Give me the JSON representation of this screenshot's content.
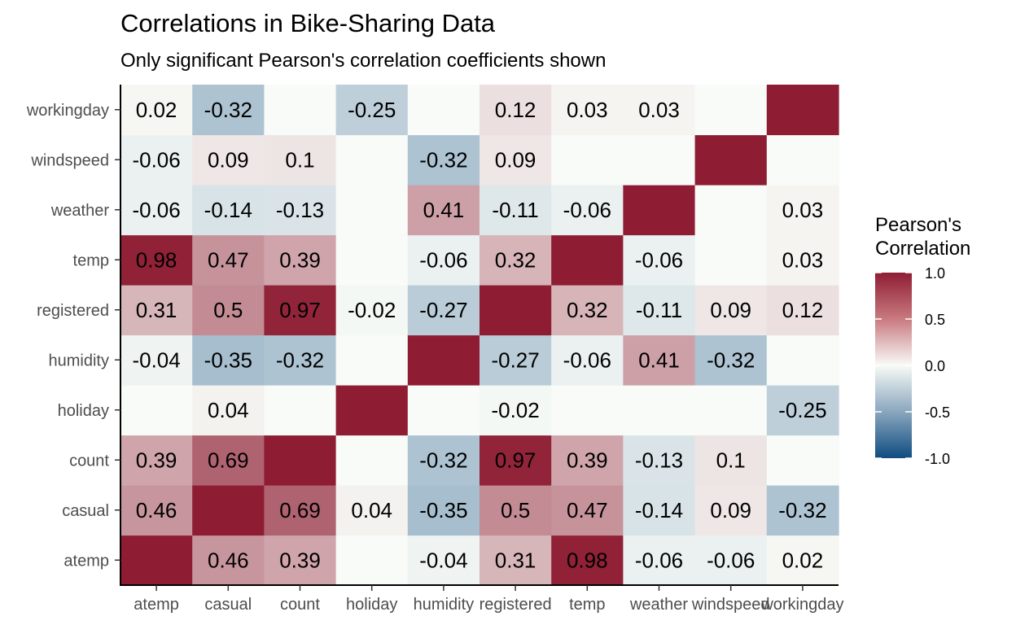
{
  "chart_data": {
    "type": "heatmap",
    "title": "Correlations in Bike-Sharing Data",
    "subtitle": "Only significant Pearson's correlation coefficients shown",
    "variables": [
      "atemp",
      "casual",
      "count",
      "holiday",
      "humidity",
      "registered",
      "temp",
      "weather",
      "windspeed",
      "workingday"
    ],
    "values": [
      [
        1.0,
        0.46,
        0.39,
        null,
        -0.04,
        0.31,
        0.98,
        -0.06,
        -0.06,
        0.02
      ],
      [
        0.46,
        1.0,
        0.69,
        0.04,
        -0.35,
        0.5,
        0.47,
        -0.14,
        0.09,
        -0.32
      ],
      [
        0.39,
        0.69,
        1.0,
        null,
        -0.32,
        0.97,
        0.39,
        -0.13,
        0.1,
        null
      ],
      [
        null,
        0.04,
        null,
        1.0,
        null,
        -0.02,
        null,
        null,
        null,
        -0.25
      ],
      [
        -0.04,
        -0.35,
        -0.32,
        null,
        1.0,
        -0.27,
        -0.06,
        0.41,
        -0.32,
        null
      ],
      [
        0.31,
        0.5,
        0.97,
        -0.02,
        -0.27,
        1.0,
        0.32,
        -0.11,
        0.09,
        0.12
      ],
      [
        0.98,
        0.47,
        0.39,
        null,
        -0.06,
        0.32,
        1.0,
        -0.06,
        null,
        0.03
      ],
      [
        -0.06,
        -0.14,
        -0.13,
        null,
        0.41,
        -0.11,
        -0.06,
        1.0,
        null,
        0.03
      ],
      [
        -0.06,
        0.09,
        0.1,
        null,
        -0.32,
        0.09,
        null,
        null,
        1.0,
        null
      ],
      [
        0.02,
        -0.32,
        null,
        -0.25,
        null,
        0.12,
        0.03,
        0.03,
        null,
        1.0
      ]
    ],
    "labels": [
      [
        "",
        "0.46",
        "0.39",
        "",
        "-0.04",
        "0.31",
        "0.98",
        "-0.06",
        "-0.06",
        "0.02"
      ],
      [
        "0.46",
        "",
        "0.69",
        "0.04",
        "-0.35",
        "0.5",
        "0.47",
        "-0.14",
        "0.09",
        "-0.32"
      ],
      [
        "0.39",
        "0.69",
        "",
        "",
        "-0.32",
        "0.97",
        "0.39",
        "-0.13",
        "0.1",
        ""
      ],
      [
        "",
        "0.04",
        "",
        "",
        "",
        "-0.02",
        "",
        "",
        "",
        "-0.25"
      ],
      [
        "-0.04",
        "-0.35",
        "-0.32",
        "",
        "",
        "-0.27",
        "-0.06",
        "0.41",
        "-0.32",
        ""
      ],
      [
        "0.31",
        "0.5",
        "0.97",
        "-0.02",
        "-0.27",
        "",
        "0.32",
        "-0.11",
        "0.09",
        "0.12"
      ],
      [
        "0.98",
        "0.47",
        "0.39",
        "",
        "-0.06",
        "0.32",
        "",
        "-0.06",
        "",
        "0.03"
      ],
      [
        "-0.06",
        "-0.14",
        "-0.13",
        "",
        "0.41",
        "-0.11",
        "-0.06",
        "",
        "",
        "0.03"
      ],
      [
        "-0.06",
        "0.09",
        "0.1",
        "",
        "-0.32",
        "0.09",
        "",
        "",
        "",
        ""
      ],
      [
        "0.02",
        "-0.32",
        "",
        "-0.25",
        "",
        "0.12",
        "0.03",
        "0.03",
        "",
        ""
      ]
    ],
    "colorscale": {
      "low": "#0f4c81",
      "mid": "#f8fbf7",
      "high": "#8e1d33",
      "range": [
        -1.0,
        1.0
      ]
    },
    "legend": {
      "title_lines": [
        "Pearson's",
        "Correlation"
      ],
      "ticks": [
        1.0,
        0.5,
        0.0,
        -0.5,
        -1.0
      ],
      "tick_labels": [
        "1.0",
        "0.5",
        "0.0",
        "-0.5",
        "-1.0"
      ],
      "placement": "right"
    }
  }
}
